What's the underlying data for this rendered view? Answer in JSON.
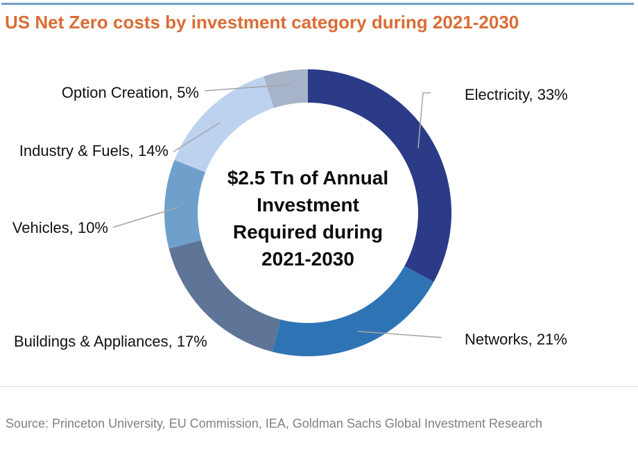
{
  "header": {
    "title": "US Net Zero costs by investment category during 2021-2030",
    "accent_color": "#D96C35",
    "rule_color": "#6F9EC7"
  },
  "chart_data": {
    "type": "pie",
    "subtype": "donut",
    "title": "US Net Zero costs by investment category during 2021-2030",
    "unit": "%",
    "start_angle_deg": 0,
    "direction": "clockwise",
    "legend": "none",
    "leader_line_color": "#A6A6A6",
    "slices": [
      {
        "label": "Electricity",
        "value": 33,
        "display": "Electricity, 33%",
        "color": "#2B3B87"
      },
      {
        "label": "Networks",
        "value": 21,
        "display": "Networks, 21%",
        "color": "#2E74B5"
      },
      {
        "label": "Buildings & Appliances",
        "value": 17,
        "display": "Buildings & Appliances, 17%",
        "color": "#5F7597"
      },
      {
        "label": "Vehicles",
        "value": 10,
        "display": "Vehicles, 10%",
        "color": "#6FA0CB"
      },
      {
        "label": "Industry & Fuels",
        "value": 14,
        "display": "Industry & Fuels, 14%",
        "color": "#BDD2EE"
      },
      {
        "label": "Option Creation",
        "value": 5,
        "display": "Option Creation, 5%",
        "color": "#A6B3C9"
      }
    ],
    "center_label": {
      "lines": [
        "$2.5 Tn of Annual",
        "Investment",
        "Required during",
        "2021-2030"
      ]
    }
  },
  "footer": {
    "source": "Source: Princeton University, EU Commission, IEA, Goldman Sachs Global Investment Research",
    "divider_color": "#D9D9D9"
  }
}
